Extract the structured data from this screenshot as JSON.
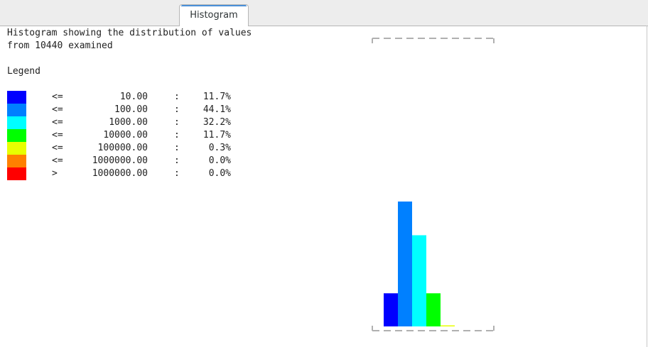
{
  "tabs": [
    {
      "label": "Histogram"
    }
  ],
  "header": {
    "line1": "Histogram showing the distribution of values",
    "line2": "from 10440 examined",
    "legend_title": "Legend"
  },
  "legend": [
    {
      "op": "<=",
      "threshold": "10.00",
      "percent": "11.7%",
      "color": "#0000ff"
    },
    {
      "op": "<=",
      "threshold": "100.00",
      "percent": "44.1%",
      "color": "#0080ff"
    },
    {
      "op": "<=",
      "threshold": "1000.00",
      "percent": "32.2%",
      "color": "#00ffff"
    },
    {
      "op": "<=",
      "threshold": "10000.00",
      "percent": "11.7%",
      "color": "#00ff00"
    },
    {
      "op": "<=",
      "threshold": "100000.00",
      "percent": "0.3%",
      "color": "#e8ff00"
    },
    {
      "op": "<=",
      "threshold": "1000000.00",
      "percent": "0.0%",
      "color": "#ff8000"
    },
    {
      "op": ">",
      "threshold": "1000000.00",
      "percent": "0.0%",
      "color": "#ff0000"
    }
  ],
  "chart_data": {
    "type": "bar",
    "categories": [
      "<= 10.00",
      "<= 100.00",
      "<= 1000.00",
      "<= 10000.00",
      "<= 100000.00",
      "<= 1000000.00",
      "> 1000000.00"
    ],
    "values": [
      11.7,
      44.1,
      32.2,
      11.7,
      0.3,
      0.0,
      0.0
    ],
    "colors": [
      "#0000ff",
      "#0080ff",
      "#00ffff",
      "#00ff00",
      "#e8ff00",
      "#ff8000",
      "#ff0000"
    ],
    "ylim": [
      0,
      44.1
    ],
    "grid": false
  }
}
